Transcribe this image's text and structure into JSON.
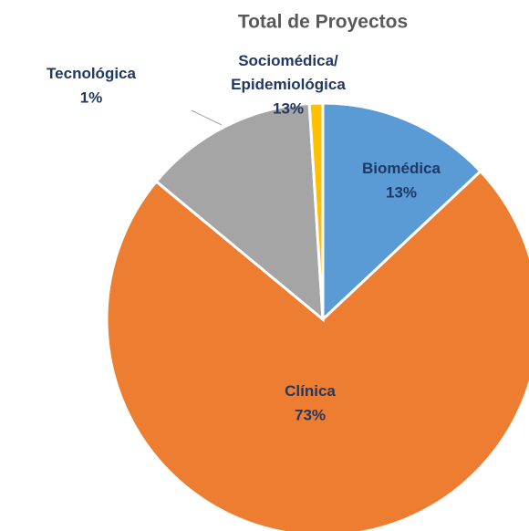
{
  "chart_data": {
    "type": "pie",
    "title": "Total de Proyectos",
    "categories": [
      "Biomédica",
      "Clínica",
      "Sociomédica/ Epidemiológica",
      "Tecnológica"
    ],
    "values": [
      13,
      73,
      13,
      1
    ],
    "value_labels": [
      "13%",
      "73%",
      "13%",
      "1%"
    ],
    "colors": [
      "#5b9bd5",
      "#ed7d31",
      "#a5a5a5",
      "#ffc000"
    ]
  }
}
